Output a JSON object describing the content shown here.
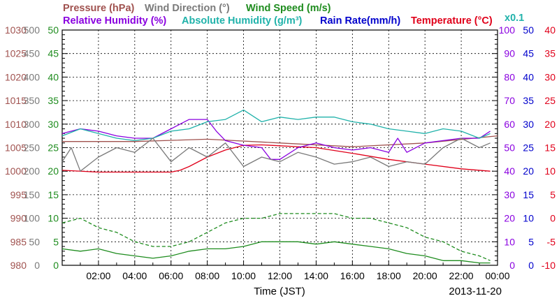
{
  "chart_data": {
    "type": "line",
    "titles": {
      "pressure": "Pressure (hPa)",
      "wind_direction": "Wind Direction (°)",
      "wind_speed": "Wind Speed (m/s)",
      "relative_humidity": "Relative Humidity (%)",
      "absolute_humidity": "Absolute Humidity (g/m³)",
      "rain_rate": "Rain Rate(mm/h)",
      "temperature": "Temperature (°C)",
      "scale_note": "x0.1"
    },
    "xlabel": "Time (JST)",
    "date": "2013-11-20",
    "x_range_hours": [
      0,
      24
    ],
    "x_ticks": [
      "02:00",
      "04:00",
      "06:00",
      "08:00",
      "10:00",
      "12:00",
      "14:00",
      "16:00",
      "18:00",
      "20:00",
      "22:00",
      "00:00"
    ],
    "grid": true,
    "axes": {
      "pressure": {
        "ylim": [
          980,
          1030
        ],
        "ticks": [
          "1030",
          "1025",
          "1020",
          "1015",
          "1010",
          "1005",
          "1000",
          "995",
          "990",
          "985",
          "980"
        ],
        "color": "#a0524f",
        "side": "left"
      },
      "wind_direction": {
        "ylim": [
          0,
          500
        ],
        "ticks": [
          "500",
          "450",
          "400",
          "350",
          "300",
          "250",
          "200",
          "150",
          "100",
          "50",
          "0"
        ],
        "color": "#7a7a7a",
        "side": "left"
      },
      "wind_speed": {
        "ylim": [
          0,
          50
        ],
        "ticks": [
          "50",
          "45",
          "40",
          "35",
          "30",
          "25",
          "20",
          "15",
          "10",
          "5",
          "0"
        ],
        "color": "#1e8c1e",
        "side": "left"
      },
      "relative_humidity": {
        "ylim": [
          0,
          100
        ],
        "ticks": [
          "100",
          "90",
          "80",
          "70",
          "60",
          "50",
          "40",
          "30",
          "20",
          "10",
          "0"
        ],
        "color": "#8a00e0",
        "side": "right"
      },
      "rain_rate": {
        "ylim": [
          0,
          50
        ],
        "ticks": [
          "50",
          "45",
          "40",
          "35",
          "30",
          "25",
          "20",
          "15",
          "10",
          "5",
          "0"
        ],
        "color": "#0000cc",
        "side": "right"
      },
      "temperature": {
        "ylim": [
          -10,
          40
        ],
        "ticks": [
          "40",
          "35",
          "30",
          "25",
          "20",
          "15",
          "10",
          "5",
          "0",
          "-5",
          "-10"
        ],
        "color": "#e0001a",
        "side": "right"
      }
    },
    "series": [
      {
        "key": "pressure",
        "color": "#a0524f",
        "dash": false,
        "x": [
          0,
          4,
          8,
          12,
          16,
          20,
          24
        ],
        "y": [
          1006.3,
          1006.3,
          1006.8,
          1006.0,
          1005.2,
          1006.0,
          1007.5
        ]
      },
      {
        "key": "temperature",
        "color": "#e0001a",
        "dash": false,
        "x": [
          0,
          2,
          4,
          6,
          6.5,
          7,
          8,
          9,
          10,
          11,
          12,
          14,
          16,
          18,
          20,
          22,
          23.6
        ],
        "y": [
          10.2,
          9.8,
          9.8,
          9.8,
          10.2,
          11,
          13,
          14.5,
          15.5,
          15.6,
          15.4,
          15,
          13.8,
          12.5,
          11.5,
          10.5,
          10.0
        ]
      },
      {
        "key": "relative_humidity",
        "color": "#8a00e0",
        "dash": false,
        "x": [
          0,
          1,
          2,
          3,
          4,
          5,
          6,
          6.5,
          7,
          8,
          8.5,
          9,
          10,
          11,
          11.5,
          12,
          13,
          14,
          15,
          16,
          17,
          18,
          18.5,
          19,
          20,
          21,
          22,
          23,
          23.6
        ],
        "y": [
          56,
          58,
          57,
          55,
          54,
          54,
          58,
          60,
          62,
          62,
          57,
          53,
          51,
          50,
          45,
          45,
          50,
          52,
          50,
          49,
          50,
          48,
          54,
          48,
          52,
          53,
          54,
          54,
          57
        ]
      },
      {
        "key": "absolute_humidity",
        "color": "#20b2aa",
        "dash": false,
        "x": [
          0,
          1,
          2,
          3,
          4,
          5,
          6,
          7,
          8,
          9,
          10,
          11,
          12,
          13,
          14,
          15,
          16,
          17,
          18,
          19,
          20,
          21,
          22,
          23,
          23.6
        ],
        "y": [
          5.5,
          5.8,
          5.6,
          5.4,
          5.3,
          5.4,
          5.7,
          5.8,
          6.1,
          6.2,
          6.6,
          6.1,
          6.3,
          6.2,
          6.3,
          6.3,
          6.1,
          6.0,
          5.8,
          5.7,
          5.6,
          5.8,
          5.7,
          5.4,
          5.6
        ]
      },
      {
        "key": "wind_direction",
        "color": "#7a7a7a",
        "dash": false,
        "x": [
          0,
          0.5,
          1,
          2,
          3,
          4,
          5,
          6,
          7,
          8,
          9,
          10,
          11,
          12,
          13,
          14,
          15,
          16,
          17,
          18,
          19,
          20,
          21,
          22,
          23,
          23.6
        ],
        "y": [
          220,
          250,
          200,
          230,
          250,
          240,
          270,
          220,
          250,
          230,
          260,
          210,
          230,
          220,
          240,
          230,
          215,
          220,
          230,
          210,
          220,
          215,
          250,
          270,
          250,
          260
        ]
      },
      {
        "key": "wind_speed_mean",
        "color": "#1e8c1e",
        "dash": false,
        "x": [
          0,
          1,
          2,
          3,
          4,
          5,
          6,
          7,
          8,
          9,
          10,
          11,
          12,
          13,
          14,
          15,
          16,
          17,
          18,
          19,
          20,
          21,
          22,
          23,
          23.6
        ],
        "y": [
          3.5,
          3,
          3.5,
          2.5,
          2,
          1.5,
          2,
          3,
          3.5,
          3.5,
          4,
          5,
          5,
          5,
          4.5,
          5,
          4.5,
          4,
          3.5,
          2.5,
          2,
          1,
          1,
          0.5,
          0.5
        ]
      },
      {
        "key": "wind_speed_gust",
        "color": "#1e8c1e",
        "dash": true,
        "x": [
          0,
          1,
          2,
          3,
          4,
          5,
          6,
          7,
          8,
          9,
          10,
          11,
          12,
          13,
          14,
          15,
          16,
          17,
          18,
          19,
          20,
          21,
          22,
          23,
          23.6
        ],
        "y": [
          9,
          10,
          8,
          7,
          5,
          4,
          4,
          5,
          7,
          9,
          10,
          10,
          11,
          11,
          11,
          11,
          10,
          10,
          9,
          8,
          6,
          5,
          3,
          2,
          1
        ]
      }
    ]
  }
}
